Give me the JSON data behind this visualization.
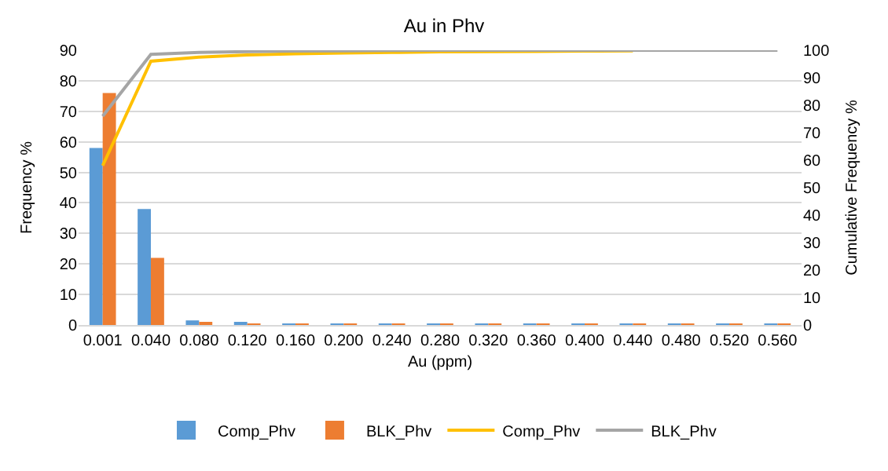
{
  "chart_data": {
    "type": "bar",
    "title": "Au in Phv",
    "xlabel": "Au (ppm)",
    "ylabel": "Frequency %",
    "y2label": "Cumulative Frequency %",
    "categories": [
      "0.001",
      "0.040",
      "0.080",
      "0.120",
      "0.160",
      "0.200",
      "0.240",
      "0.280",
      "0.320",
      "0.360",
      "0.400",
      "0.440",
      "0.480",
      "0.520",
      "0.560"
    ],
    "series": [
      {
        "name": "Comp_Phv",
        "color": "#5b9bd5",
        "values": [
          58,
          38,
          1.5,
          0.8,
          0.4,
          0.3,
          0.2,
          0.2,
          0.1,
          0.1,
          0.1,
          0.1,
          0.1,
          0.1,
          0.1
        ]
      },
      {
        "name": "BLK_Phv",
        "color": "#ed7d31",
        "values": [
          76,
          22,
          0.7,
          0.3,
          0.2,
          0.2,
          0.2,
          0.2,
          0.1,
          0.1,
          0.1,
          0.1,
          0.1,
          0.1,
          0.1
        ]
      },
      {
        "name": "Comp_Phv",
        "type": "line",
        "axis": "y2",
        "color": "#ffc000",
        "values": [
          58,
          96,
          97.5,
          98.3,
          98.7,
          99,
          99.2,
          99.4,
          99.5,
          99.6,
          99.7,
          99.8,
          null,
          null,
          null
        ]
      },
      {
        "name": "BLK_Phv",
        "type": "line",
        "axis": "y2",
        "color": "#a5a5a5",
        "values": [
          76,
          98.5,
          99.2,
          99.5,
          99.7,
          99.8,
          99.9,
          100,
          100,
          100,
          100,
          100,
          100,
          100,
          100
        ]
      }
    ],
    "ylim": [
      0,
      90
    ],
    "yticks": [
      0,
      10,
      20,
      30,
      40,
      50,
      60,
      70,
      80,
      90
    ],
    "y2lim": [
      0,
      100
    ],
    "y2ticks": [
      0,
      10,
      20,
      30,
      40,
      50,
      60,
      70,
      80,
      90,
      100
    ],
    "grid": "y",
    "legend": "bottom",
    "marker": "none",
    "line_style": "solid"
  }
}
